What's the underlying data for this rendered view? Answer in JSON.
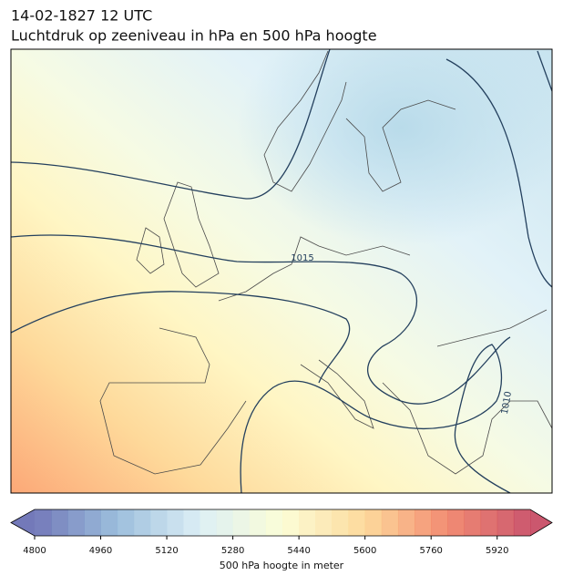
{
  "header": {
    "date": "14-02-1827 12 UTC",
    "title": "Luchtdruk op zeeniveau in hPa en 500 hPa hoogte"
  },
  "map": {
    "contour_labels": [
      "1015",
      "1010"
    ]
  },
  "colorbar": {
    "label": "500 hPa hoogte in meter",
    "range": [
      4800,
      6000
    ],
    "step": 40,
    "ticks": [
      4800,
      4960,
      5120,
      5280,
      5440,
      5600,
      5760,
      5920
    ],
    "extend": "both",
    "colors": [
      "#5b62ad",
      "#8bb3d6",
      "#d6ecf4",
      "#fbfdd0",
      "#fdd38b",
      "#f0785a",
      "#c23a55"
    ]
  }
}
